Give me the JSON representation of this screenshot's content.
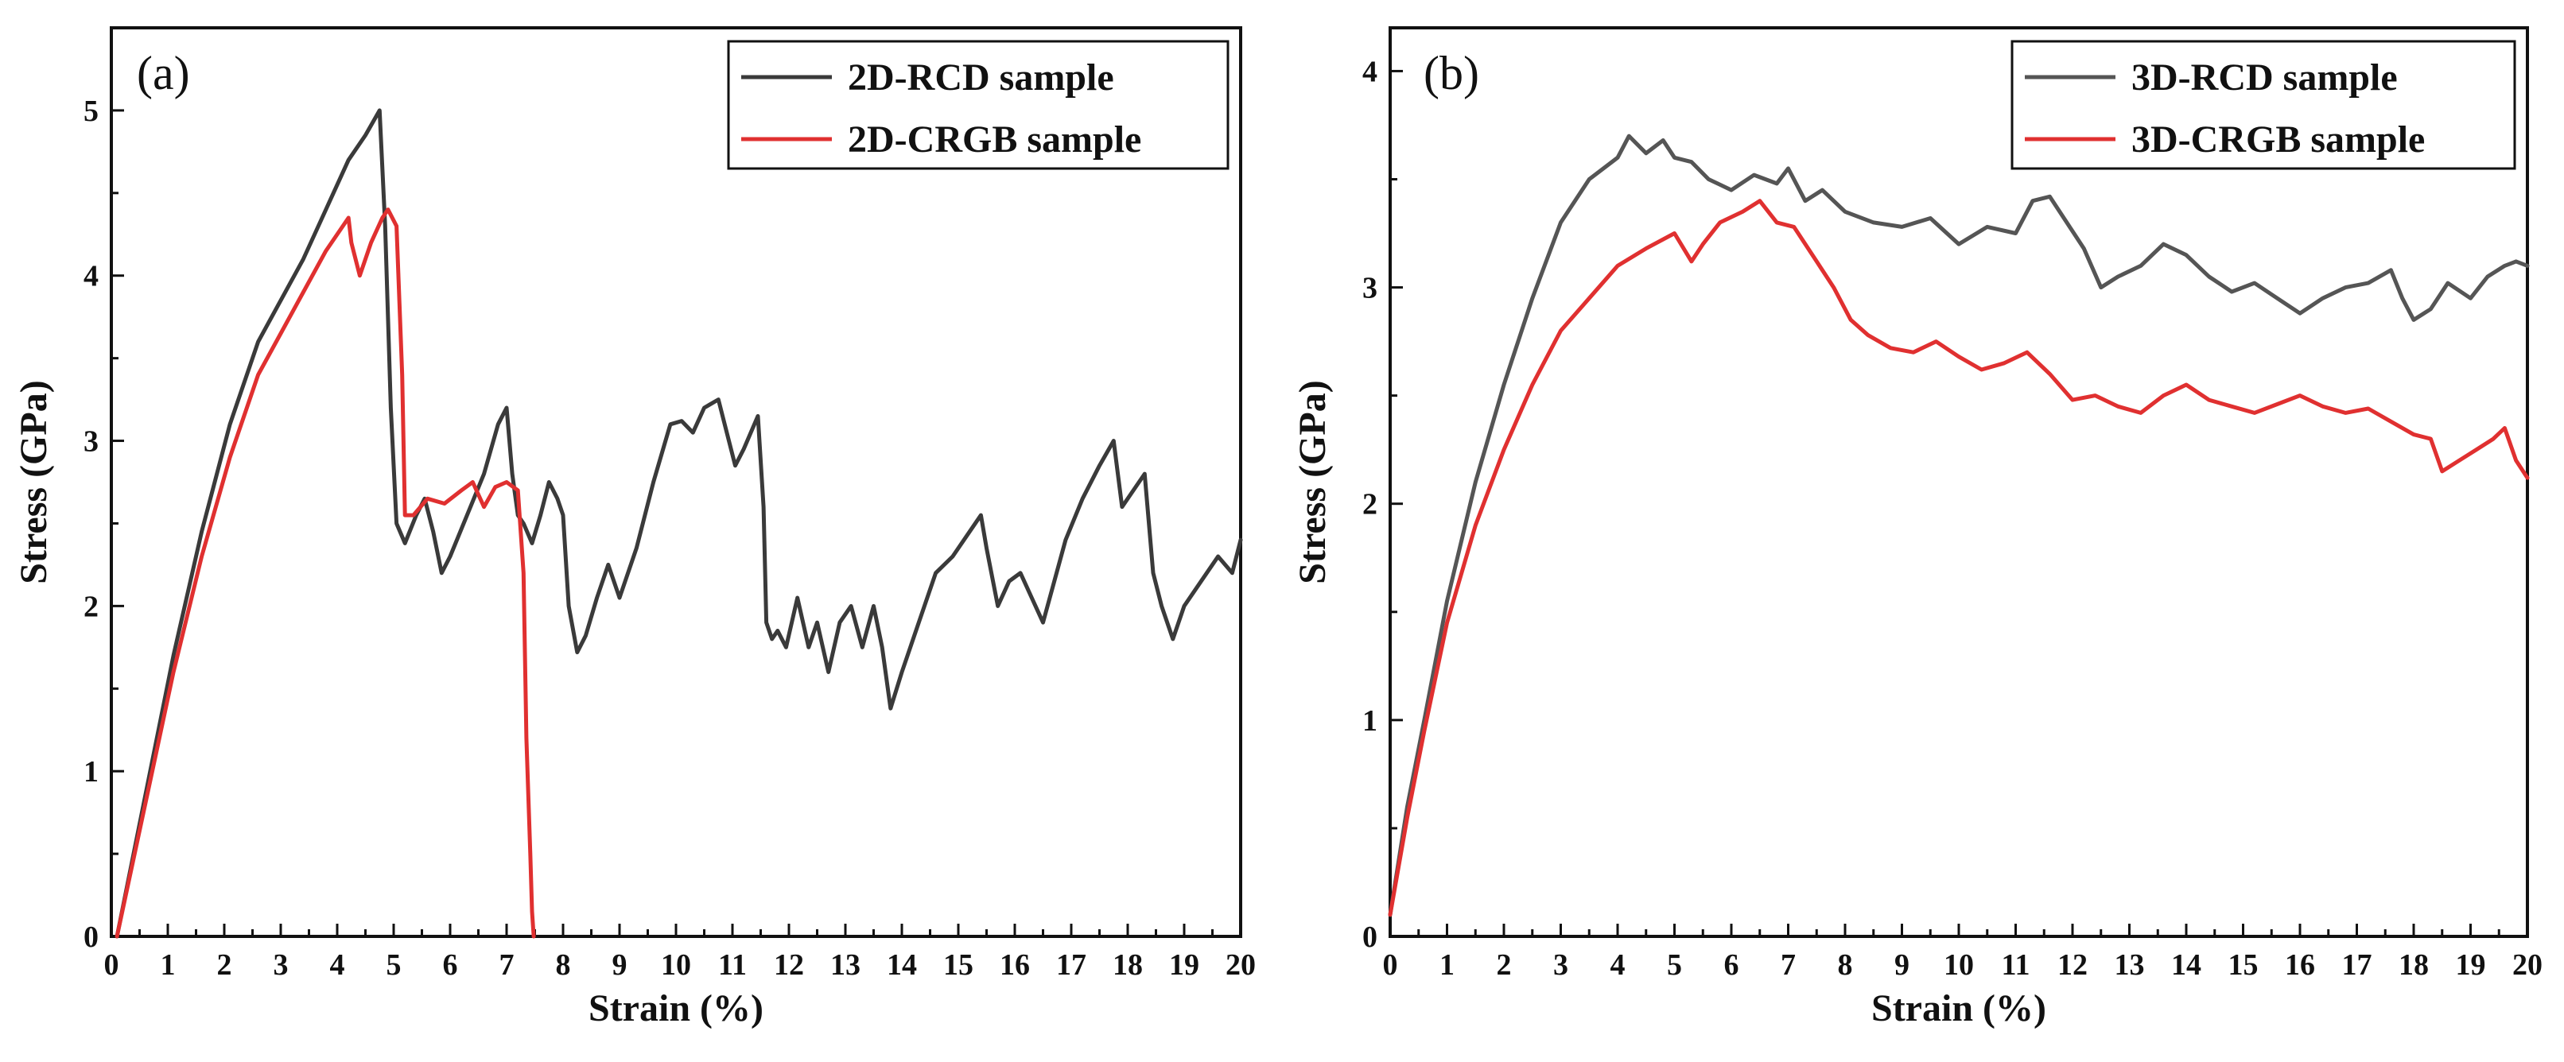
{
  "chart_data": [
    {
      "type": "line",
      "panel_label": "(a)",
      "xlabel": "Strain (%)",
      "ylabel": "Stress (GPa)",
      "xlim": [
        0,
        20
      ],
      "ylim": [
        0,
        5.5
      ],
      "xticks": [
        0,
        1,
        2,
        3,
        4,
        5,
        6,
        7,
        8,
        9,
        10,
        11,
        12,
        13,
        14,
        15,
        16,
        17,
        18,
        19,
        20
      ],
      "yticks": [
        0,
        1,
        2,
        3,
        4,
        5
      ],
      "legend_position": "top-right",
      "series": [
        {
          "name": "2D-RCD sample",
          "color": "#3a3a3a",
          "x": [
            0.1,
            0.6,
            1.1,
            1.6,
            2.1,
            2.6,
            3.0,
            3.4,
            3.8,
            4.2,
            4.5,
            4.75,
            4.85,
            4.95,
            5.05,
            5.2,
            5.4,
            5.55,
            5.7,
            5.85,
            6.0,
            6.3,
            6.6,
            6.85,
            7.0,
            7.1,
            7.2,
            7.3,
            7.45,
            7.6,
            7.75,
            7.9,
            8.0,
            8.1,
            8.25,
            8.4,
            8.6,
            8.8,
            9.0,
            9.3,
            9.6,
            9.9,
            10.1,
            10.3,
            10.5,
            10.75,
            10.9,
            11.05,
            11.2,
            11.45,
            11.55,
            11.6,
            11.7,
            11.8,
            11.95,
            12.15,
            12.35,
            12.5,
            12.7,
            12.9,
            13.1,
            13.3,
            13.5,
            13.65,
            13.8,
            14.0,
            14.3,
            14.6,
            14.9,
            15.2,
            15.4,
            15.5,
            15.7,
            15.9,
            16.1,
            16.3,
            16.5,
            16.7,
            16.9,
            17.2,
            17.5,
            17.75,
            17.9,
            18.1,
            18.3,
            18.45,
            18.6,
            18.8,
            19.0,
            19.3,
            19.6,
            19.85,
            20.0
          ],
          "y": [
            0.0,
            0.85,
            1.7,
            2.45,
            3.1,
            3.6,
            3.85,
            4.1,
            4.4,
            4.7,
            4.85,
            5.0,
            4.3,
            3.2,
            2.5,
            2.38,
            2.55,
            2.65,
            2.45,
            2.2,
            2.3,
            2.55,
            2.8,
            3.1,
            3.2,
            2.8,
            2.55,
            2.5,
            2.38,
            2.55,
            2.75,
            2.65,
            2.55,
            2.0,
            1.72,
            1.82,
            2.05,
            2.25,
            2.05,
            2.35,
            2.75,
            3.1,
            3.12,
            3.05,
            3.2,
            3.25,
            3.05,
            2.85,
            2.95,
            3.15,
            2.6,
            1.9,
            1.8,
            1.85,
            1.75,
            2.05,
            1.75,
            1.9,
            1.6,
            1.9,
            2.0,
            1.75,
            2.0,
            1.75,
            1.38,
            1.6,
            1.9,
            2.2,
            2.3,
            2.45,
            2.55,
            2.35,
            2.0,
            2.15,
            2.2,
            2.05,
            1.9,
            2.15,
            2.4,
            2.65,
            2.85,
            3.0,
            2.6,
            2.7,
            2.8,
            2.2,
            2.0,
            1.8,
            2.0,
            2.15,
            2.3,
            2.2,
            2.4
          ]
        },
        {
          "name": "2D-CRGB sample",
          "color": "#e03030",
          "x": [
            0.1,
            0.6,
            1.1,
            1.6,
            2.1,
            2.6,
            3.0,
            3.4,
            3.8,
            4.2,
            4.25,
            4.4,
            4.6,
            4.8,
            4.9,
            5.05,
            5.15,
            5.2,
            5.35,
            5.6,
            5.9,
            6.2,
            6.4,
            6.6,
            6.8,
            7.0,
            7.2,
            7.3,
            7.35,
            7.38,
            7.42,
            7.45,
            7.48
          ],
          "y": [
            0.0,
            0.8,
            1.6,
            2.3,
            2.9,
            3.4,
            3.65,
            3.9,
            4.15,
            4.35,
            4.2,
            4.0,
            4.2,
            4.35,
            4.4,
            4.3,
            3.4,
            2.55,
            2.55,
            2.65,
            2.62,
            2.7,
            2.75,
            2.6,
            2.72,
            2.75,
            2.7,
            2.2,
            1.2,
            0.9,
            0.5,
            0.15,
            0.0
          ]
        }
      ]
    },
    {
      "type": "line",
      "panel_label": "(b)",
      "xlabel": "Strain (%)",
      "ylabel": "Stress (GPa)",
      "xlim": [
        0,
        20
      ],
      "ylim": [
        0,
        4.2
      ],
      "xticks": [
        0,
        1,
        2,
        3,
        4,
        5,
        6,
        7,
        8,
        9,
        10,
        11,
        12,
        13,
        14,
        15,
        16,
        17,
        18,
        19,
        20
      ],
      "yticks": [
        0,
        1,
        2,
        3,
        4
      ],
      "legend_position": "top-right",
      "series": [
        {
          "name": "3D-RCD sample",
          "color": "#555555",
          "x": [
            0.0,
            0.3,
            0.6,
            1.0,
            1.5,
            2.0,
            2.5,
            3.0,
            3.5,
            4.0,
            4.2,
            4.5,
            4.8,
            5.0,
            5.3,
            5.6,
            6.0,
            6.4,
            6.8,
            7.0,
            7.3,
            7.6,
            8.0,
            8.5,
            9.0,
            9.5,
            10.0,
            10.5,
            11.0,
            11.3,
            11.6,
            11.9,
            12.2,
            12.5,
            12.8,
            13.2,
            13.6,
            14.0,
            14.4,
            14.8,
            15.2,
            15.6,
            16.0,
            16.4,
            16.8,
            17.2,
            17.6,
            17.8,
            18.0,
            18.3,
            18.6,
            19.0,
            19.3,
            19.6,
            19.8,
            20.0
          ],
          "y": [
            0.1,
            0.6,
            1.0,
            1.55,
            2.1,
            2.55,
            2.95,
            3.3,
            3.5,
            3.6,
            3.7,
            3.62,
            3.68,
            3.6,
            3.58,
            3.5,
            3.45,
            3.52,
            3.48,
            3.55,
            3.4,
            3.45,
            3.35,
            3.3,
            3.28,
            3.32,
            3.2,
            3.28,
            3.25,
            3.4,
            3.42,
            3.3,
            3.18,
            3.0,
            3.05,
            3.1,
            3.2,
            3.15,
            3.05,
            2.98,
            3.02,
            2.95,
            2.88,
            2.95,
            3.0,
            3.02,
            3.08,
            2.95,
            2.85,
            2.9,
            3.02,
            2.95,
            3.05,
            3.1,
            3.12,
            3.1
          ]
        },
        {
          "name": "3D-CRGB sample",
          "color": "#e03030",
          "x": [
            0.0,
            0.3,
            0.6,
            1.0,
            1.5,
            2.0,
            2.5,
            3.0,
            3.5,
            4.0,
            4.5,
            5.0,
            5.3,
            5.5,
            5.8,
            6.2,
            6.5,
            6.8,
            7.1,
            7.5,
            7.8,
            8.1,
            8.4,
            8.8,
            9.2,
            9.6,
            10.0,
            10.4,
            10.8,
            11.2,
            11.6,
            12.0,
            12.4,
            12.8,
            13.2,
            13.6,
            14.0,
            14.4,
            14.8,
            15.2,
            15.6,
            16.0,
            16.4,
            16.8,
            17.2,
            17.6,
            18.0,
            18.3,
            18.5,
            18.8,
            19.1,
            19.4,
            19.6,
            19.8,
            20.0
          ],
          "y": [
            0.1,
            0.55,
            0.95,
            1.45,
            1.9,
            2.25,
            2.55,
            2.8,
            2.95,
            3.1,
            3.18,
            3.25,
            3.12,
            3.2,
            3.3,
            3.35,
            3.4,
            3.3,
            3.28,
            3.12,
            3.0,
            2.85,
            2.78,
            2.72,
            2.7,
            2.75,
            2.68,
            2.62,
            2.65,
            2.7,
            2.6,
            2.48,
            2.5,
            2.45,
            2.42,
            2.5,
            2.55,
            2.48,
            2.45,
            2.42,
            2.46,
            2.5,
            2.45,
            2.42,
            2.44,
            2.38,
            2.32,
            2.3,
            2.15,
            2.2,
            2.25,
            2.3,
            2.35,
            2.2,
            2.12
          ]
        }
      ]
    }
  ]
}
